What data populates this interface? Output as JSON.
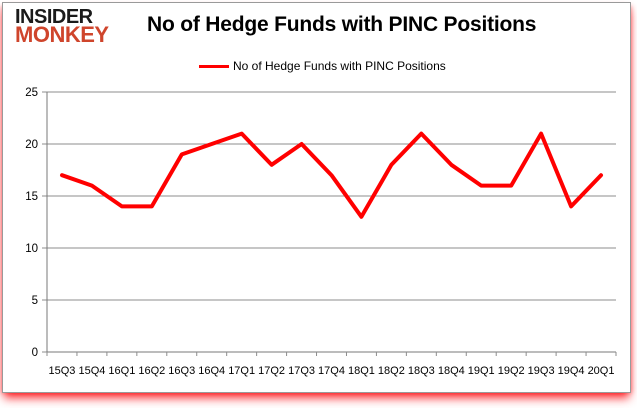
{
  "window": {
    "background_color": "#ffffff",
    "frame_border_color": "#9a9a9a",
    "frame_glow_color": "#fd0c12"
  },
  "logo": {
    "line1": "INSIDER",
    "line2": "MONKEY",
    "line1_color": "#1a1a1a",
    "line2_color": "#cf452c"
  },
  "header": {
    "title": "No of Hedge Funds with PINC Positions"
  },
  "legend": {
    "label": "No of Hedge Funds with PINC Positions",
    "swatch_color": "#ff0000"
  },
  "chart_data": {
    "type": "line",
    "title": "No of Hedge Funds with PINC Positions",
    "categories": [
      "15Q3",
      "15Q4",
      "16Q1",
      "16Q2",
      "16Q3",
      "16Q4",
      "17Q1",
      "17Q2",
      "17Q3",
      "17Q4",
      "18Q1",
      "18Q2",
      "18Q3",
      "18Q4",
      "19Q1",
      "19Q2",
      "19Q3",
      "19Q4",
      "20Q1"
    ],
    "series": [
      {
        "name": "No of Hedge Funds with PINC Positions",
        "color": "#ff0000",
        "values": [
          17,
          16,
          14,
          14,
          19,
          20,
          21,
          18,
          20,
          17,
          13,
          18,
          21,
          18,
          16,
          16,
          21,
          14,
          17
        ]
      }
    ],
    "xlabel": "",
    "ylabel": "",
    "ylim": [
      0,
      25
    ],
    "yticks": [
      0,
      5,
      10,
      15,
      20,
      25
    ],
    "grid": true,
    "gridline_color": "#8c8c8c",
    "axis_color": "#7a7a7a",
    "tick_color": "#8c8c8c",
    "tick_label_color": "#000000",
    "legend_position": "top"
  }
}
